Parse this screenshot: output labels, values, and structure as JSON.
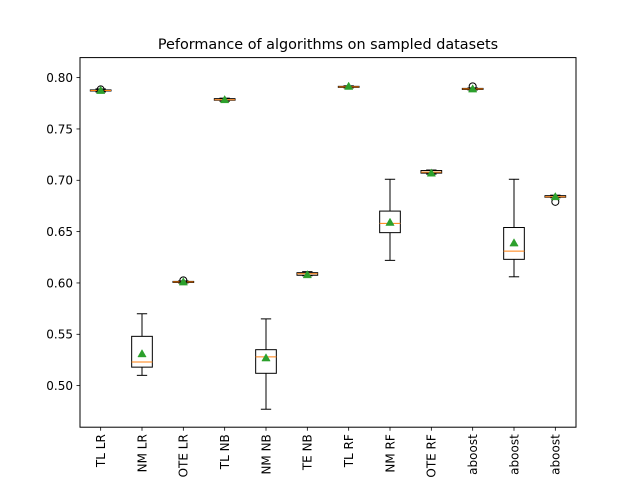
{
  "chart_data": {
    "type": "boxplot",
    "title": "Peformance of algorithms on sampled datasets",
    "xlabel": "",
    "ylabel": "",
    "ylim": [
      0.4595,
      0.8195
    ],
    "yticks": [
      0.5,
      0.55,
      0.6,
      0.65,
      0.7,
      0.75,
      0.8
    ],
    "ytick_labels": [
      "0.50",
      "0.55",
      "0.60",
      "0.65",
      "0.70",
      "0.75",
      "0.80"
    ],
    "categories": [
      "TL LR",
      "NM LR",
      "OTE LR",
      "TL NB",
      "NM NB",
      "TE NB",
      "TL RF",
      "NM RF",
      "OTE RF",
      "aboost",
      "aboost",
      "aboost"
    ],
    "boxes": [
      {
        "whislo": 0.786,
        "q1": 0.787,
        "med": 0.7875,
        "q3": 0.788,
        "whishi": 0.789,
        "mean": 0.7875,
        "fliers": [
          0.7885
        ]
      },
      {
        "whislo": 0.51,
        "q1": 0.518,
        "med": 0.523,
        "q3": 0.548,
        "whishi": 0.57,
        "mean": 0.531,
        "fliers": []
      },
      {
        "whislo": 0.6,
        "q1": 0.6005,
        "med": 0.601,
        "q3": 0.6015,
        "whishi": 0.602,
        "mean": 0.601,
        "fliers": [
          0.6025
        ]
      },
      {
        "whislo": 0.777,
        "q1": 0.778,
        "med": 0.7785,
        "q3": 0.7795,
        "whishi": 0.78,
        "mean": 0.7785,
        "fliers": []
      },
      {
        "whislo": 0.477,
        "q1": 0.512,
        "med": 0.528,
        "q3": 0.535,
        "whishi": 0.565,
        "mean": 0.527,
        "fliers": []
      },
      {
        "whislo": 0.607,
        "q1": 0.6075,
        "med": 0.609,
        "q3": 0.61,
        "whishi": 0.611,
        "mean": 0.608,
        "fliers": []
      },
      {
        "whislo": 0.79,
        "q1": 0.7905,
        "med": 0.791,
        "q3": 0.7915,
        "whishi": 0.792,
        "mean": 0.7915,
        "fliers": []
      },
      {
        "whislo": 0.622,
        "q1": 0.649,
        "med": 0.658,
        "q3": 0.67,
        "whishi": 0.701,
        "mean": 0.659,
        "fliers": []
      },
      {
        "whislo": 0.706,
        "q1": 0.707,
        "med": 0.708,
        "q3": 0.7095,
        "whishi": 0.71,
        "mean": 0.707,
        "fliers": []
      },
      {
        "whislo": 0.788,
        "q1": 0.7885,
        "med": 0.789,
        "q3": 0.7895,
        "whishi": 0.79,
        "mean": 0.789,
        "fliers": [
          0.7915
        ]
      },
      {
        "whislo": 0.606,
        "q1": 0.623,
        "med": 0.631,
        "q3": 0.654,
        "whishi": 0.701,
        "mean": 0.639,
        "fliers": []
      },
      {
        "whislo": 0.683,
        "q1": 0.6835,
        "med": 0.684,
        "q3": 0.685,
        "whishi": 0.6855,
        "mean": 0.684,
        "fliers": [
          0.679
        ]
      }
    ],
    "grid": false,
    "legend": "none"
  },
  "colors": {
    "box_edge": "#000000",
    "median": "#ff7f0e",
    "mean_marker": "#2ca02c",
    "flier": "#000000"
  }
}
